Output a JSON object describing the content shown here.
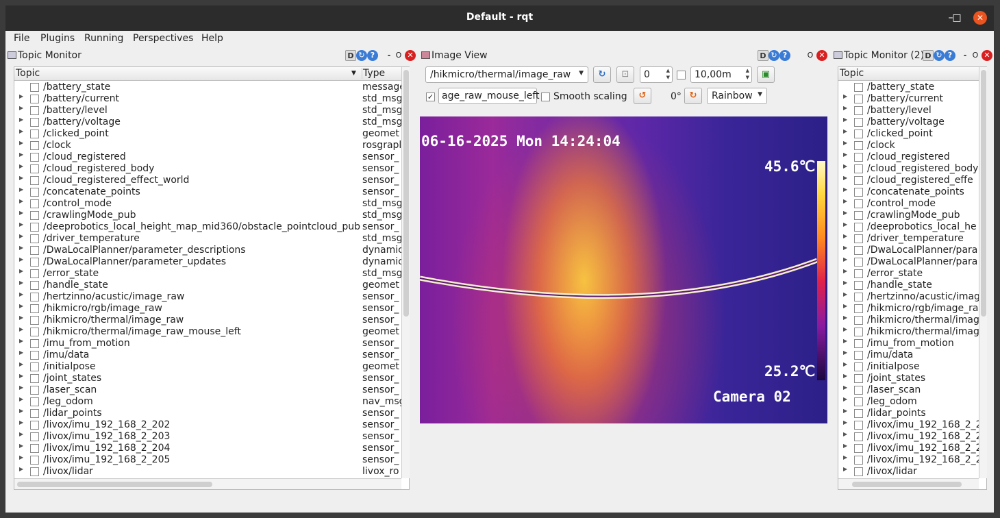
{
  "window": {
    "title": "Default - rqt"
  },
  "menubar": [
    "File",
    "Plugins",
    "Running",
    "Perspectives",
    "Help"
  ],
  "left_panel": {
    "title": "Topic Monitor",
    "header_buttons": {
      "d": "D",
      "dash": "-",
      "o": "O"
    },
    "columns": {
      "topic": "Topic",
      "type": "Type"
    },
    "rows": [
      {
        "topic": "/battery_state",
        "type": "message",
        "expandable": false
      },
      {
        "topic": "/battery/current",
        "type": "std_msg",
        "expandable": true
      },
      {
        "topic": "/battery/level",
        "type": "std_msg",
        "expandable": true
      },
      {
        "topic": "/battery/voltage",
        "type": "std_msg",
        "expandable": true
      },
      {
        "topic": "/clicked_point",
        "type": "geomet",
        "expandable": true
      },
      {
        "topic": "/clock",
        "type": "rosgrapl",
        "expandable": true
      },
      {
        "topic": "/cloud_registered",
        "type": "sensor_",
        "expandable": true
      },
      {
        "topic": "/cloud_registered_body",
        "type": "sensor_",
        "expandable": true
      },
      {
        "topic": "/cloud_registered_effect_world",
        "type": "sensor_",
        "expandable": true
      },
      {
        "topic": "/concatenate_points",
        "type": "sensor_",
        "expandable": true
      },
      {
        "topic": "/control_mode",
        "type": "std_msg",
        "expandable": true
      },
      {
        "topic": "/crawlingMode_pub",
        "type": "std_msg",
        "expandable": true
      },
      {
        "topic": "/deeprobotics_local_height_map_mid360/obstacle_pointcloud_pub",
        "type": "sensor_",
        "expandable": true
      },
      {
        "topic": "/driver_temperature",
        "type": "std_msg",
        "expandable": true
      },
      {
        "topic": "/DwaLocalPlanner/parameter_descriptions",
        "type": "dynamic",
        "expandable": true
      },
      {
        "topic": "/DwaLocalPlanner/parameter_updates",
        "type": "dynamic",
        "expandable": true
      },
      {
        "topic": "/error_state",
        "type": "std_msg",
        "expandable": true
      },
      {
        "topic": "/handle_state",
        "type": "geomet",
        "expandable": true
      },
      {
        "topic": "/hertzinno/acustic/image_raw",
        "type": "sensor_",
        "expandable": true
      },
      {
        "topic": "/hikmicro/rgb/image_raw",
        "type": "sensor_",
        "expandable": true
      },
      {
        "topic": "/hikmicro/thermal/image_raw",
        "type": "sensor_",
        "expandable": true
      },
      {
        "topic": "/hikmicro/thermal/image_raw_mouse_left",
        "type": "geomet",
        "expandable": true
      },
      {
        "topic": "/imu_from_motion",
        "type": "sensor_",
        "expandable": true
      },
      {
        "topic": "/imu/data",
        "type": "sensor_",
        "expandable": true
      },
      {
        "topic": "/initialpose",
        "type": "geomet",
        "expandable": true
      },
      {
        "topic": "/joint_states",
        "type": "sensor_",
        "expandable": true
      },
      {
        "topic": "/laser_scan",
        "type": "sensor_",
        "expandable": true
      },
      {
        "topic": "/leg_odom",
        "type": "nav_msg",
        "expandable": true
      },
      {
        "topic": "/lidar_points",
        "type": "sensor_",
        "expandable": true
      },
      {
        "topic": "/livox/imu_192_168_2_202",
        "type": "sensor_",
        "expandable": true
      },
      {
        "topic": "/livox/imu_192_168_2_203",
        "type": "sensor_",
        "expandable": true
      },
      {
        "topic": "/livox/imu_192_168_2_204",
        "type": "sensor_",
        "expandable": true
      },
      {
        "topic": "/livox/imu_192_168_2_205",
        "type": "sensor_",
        "expandable": true
      },
      {
        "topic": "/livox/lidar",
        "type": "livox_ro",
        "expandable": true
      }
    ]
  },
  "image_view": {
    "title": "Image View",
    "header_buttons": {
      "d": "D",
      "o": "O"
    },
    "topic_select": "/hikmicro/thermal/image_raw",
    "spin_value": "0",
    "distance_value": "10,00m",
    "mouse_topic_value": "age_raw_mouse_left",
    "mouse_checked": true,
    "smooth_scaling_label": "Smooth scaling",
    "rotation_label": "0°",
    "colormap": "Rainbow",
    "overlay": {
      "timestamp": "06-16-2025 Mon 14:24:04",
      "temp_max": "45.6℃",
      "temp_min": "25.2℃",
      "camera": "Camera 02"
    }
  },
  "right_panel": {
    "title": "Topic Monitor (2)",
    "header_buttons": {
      "d": "D",
      "dash": "-",
      "o": "O"
    },
    "columns": {
      "topic": "Topic"
    },
    "rows": [
      "/battery_state",
      "/battery/current",
      "/battery/level",
      "/battery/voltage",
      "/clicked_point",
      "/clock",
      "/cloud_registered",
      "/cloud_registered_body",
      "/cloud_registered_effe",
      "/concatenate_points",
      "/control_mode",
      "/crawlingMode_pub",
      "/deeprobotics_local_he",
      "/driver_temperature",
      "/DwaLocalPlanner/para",
      "/DwaLocalPlanner/para",
      "/error_state",
      "/handle_state",
      "/hertzinno/acustic/imag",
      "/hikmicro/rgb/image_ra",
      "/hikmicro/thermal/imag",
      "/hikmicro/thermal/imag",
      "/imu_from_motion",
      "/imu/data",
      "/initialpose",
      "/joint_states",
      "/laser_scan",
      "/leg_odom",
      "/lidar_points",
      "/livox/imu_192_168_2_2",
      "/livox/imu_192_168_2_2",
      "/livox/imu_192_168_2_2",
      "/livox/imu_192_168_2_2",
      "/livox/lidar"
    ]
  }
}
